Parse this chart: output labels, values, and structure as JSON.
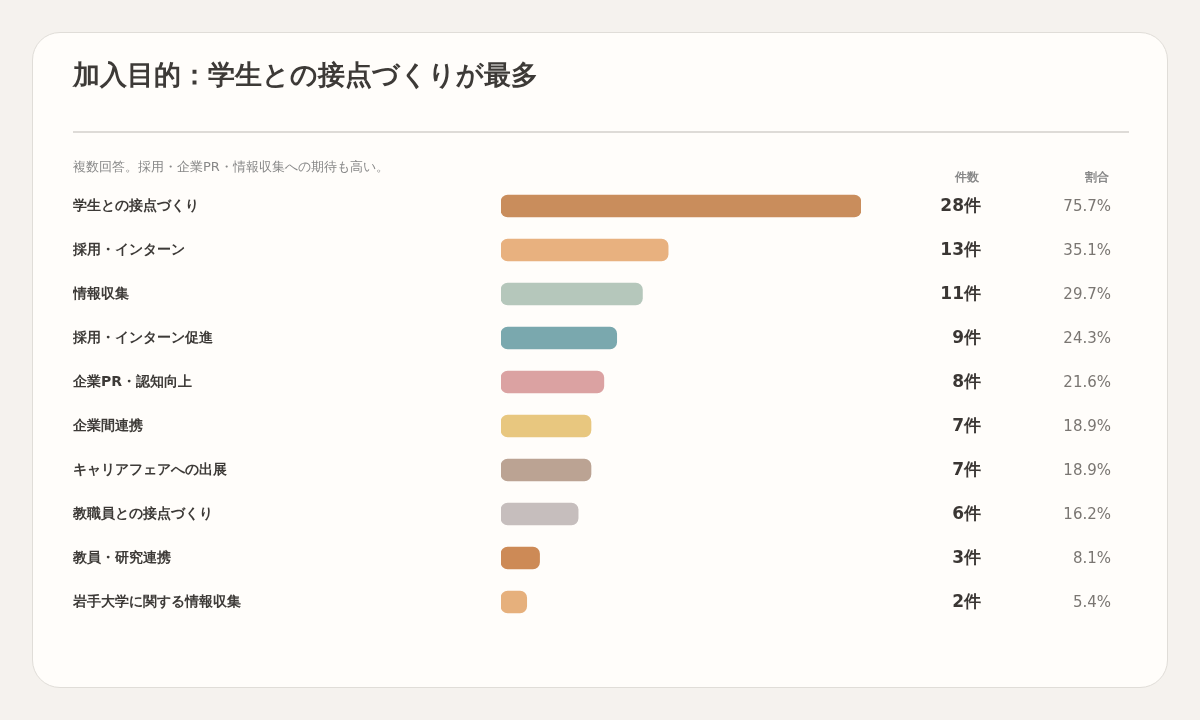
{
  "chart_data": {
    "type": "bar",
    "orientation": "horizontal",
    "title": "加入目的：学生との接点づくりが最多",
    "subtitle": "複数回答。採用・企業PR・情報収集への期待も高い。",
    "categories": [
      "学生との接点づくり",
      "採用・インターン",
      "情報収集",
      "採用・インターン促進",
      "企業PR・認知向上",
      "企業間連携",
      "キャリアフェアへの出展",
      "教職員との接点づくり",
      "教員・研究連携",
      "岩手大学に関する情報収集"
    ],
    "values": [
      28,
      13,
      11,
      9,
      8,
      7,
      7,
      6,
      3,
      2
    ],
    "value_labels": [
      "28件",
      "13件",
      "11件",
      "9件",
      "8件",
      "7件",
      "7件",
      "6件",
      "3件",
      "2件"
    ],
    "colors": [
      "#c98d5c",
      "#e8b17f",
      "#b5c7bb",
      "#7aa8ae",
      "#dba2a2",
      "#e8c77f",
      "#bba393",
      "#c6bebd",
      "#cd8a56",
      "#e6b07c"
    ],
    "xlim": [
      0,
      28
    ],
    "tick_labels": "y",
    "grid": false,
    "legend": false,
    "annotations": [
      "件数",
      "割合",
      "75.7%",
      "35.1%",
      "29.7%",
      "24.3%",
      "21.6%",
      "18.9%",
      "18.9%",
      "16.2%",
      "8.1%",
      "5.4%"
    ]
  }
}
